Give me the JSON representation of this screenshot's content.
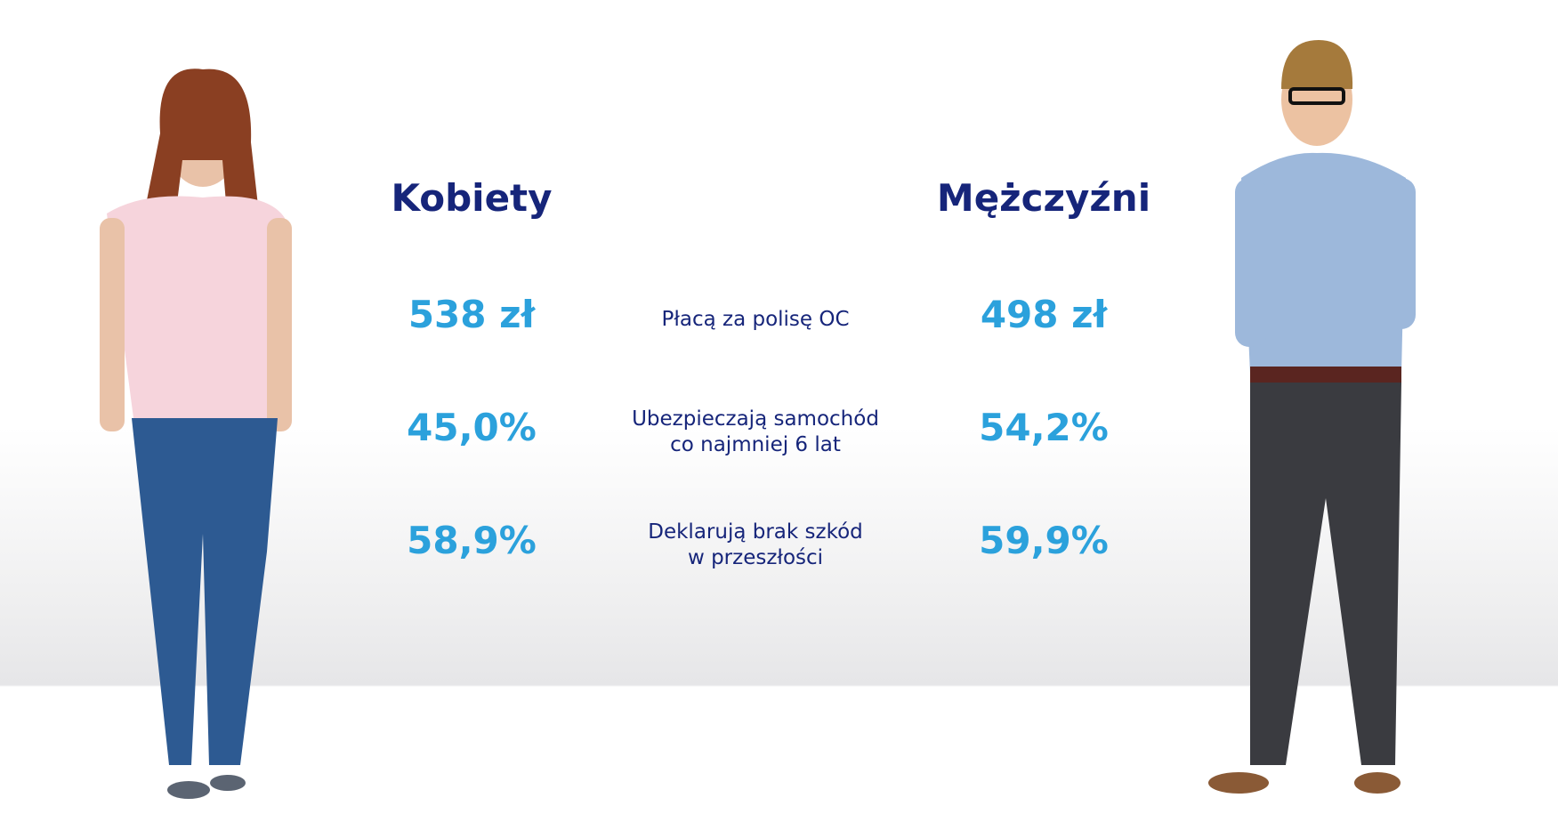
{
  "headers": {
    "women": "Kobiety",
    "men": "Mężczyźni"
  },
  "rows": [
    {
      "women": "538 zł",
      "label": [
        "Płacą za polisę OC"
      ],
      "men": "498 zł"
    },
    {
      "women": "45,0%",
      "label": [
        "Ubezpieczają samochód",
        "co najmniej 6 lat"
      ],
      "men": "54,2%"
    },
    {
      "women": "58,9%",
      "label": [
        "Deklarują brak szkód",
        "w przeszłości"
      ],
      "men": "59,9%"
    }
  ]
}
